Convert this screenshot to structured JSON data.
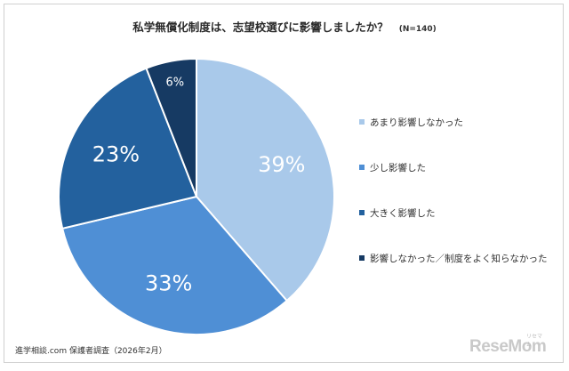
{
  "chart_data": {
    "type": "pie",
    "title": "私学無償化制度は、志望校選びに影響しましたか？",
    "subtitle": "(N=140)",
    "categories": [
      "あまり影響しなかった",
      "少し影響した",
      "大きく影響した",
      "影響しなかった／制度をよく知らなかった"
    ],
    "values": [
      39,
      33,
      23,
      6
    ],
    "data_labels": [
      "39%",
      "33%",
      "23%",
      "6%"
    ],
    "colors": [
      "#a9c9ea",
      "#4f8fd5",
      "#23619e",
      "#163a63"
    ],
    "label_colors": [
      "#ffffff",
      "#ffffff",
      "#ffffff",
      "#ffffff"
    ],
    "legend_position": "right"
  },
  "source": "進学相談.com 保護者調査（2026年2月）",
  "logo": {
    "text": "ReseMom",
    "kana": "リセマム"
  }
}
